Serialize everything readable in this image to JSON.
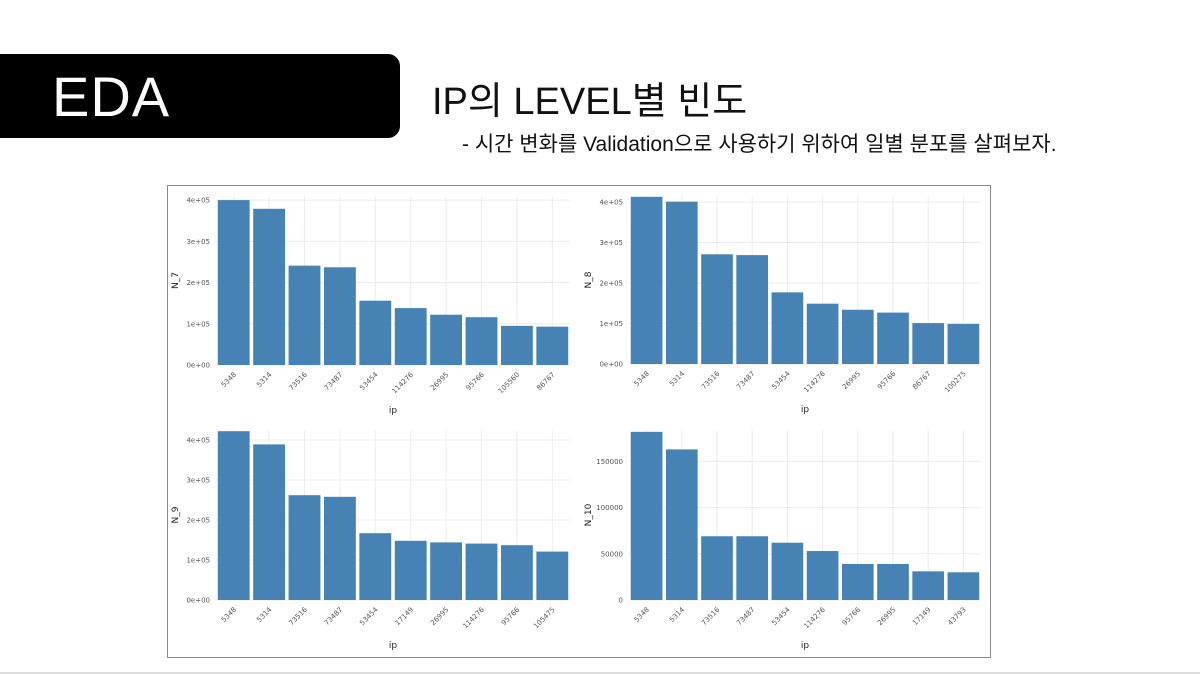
{
  "slide": {
    "tag": "EDA",
    "title": "IP의 LEVEL별 빈도",
    "subtitle": "- 시간 변화를 Validation으로 사용하기 위하여 일별 분포를 살펴보자."
  },
  "colors": {
    "bar": "#4682b4",
    "tag_background": "#000000"
  },
  "chart_data": [
    {
      "type": "bar",
      "title": "",
      "xlabel": "ip",
      "ylabel": "N_7",
      "categories": [
        "5348",
        "5314",
        "73516",
        "73487",
        "53454",
        "114276",
        "26995",
        "95766",
        "105560",
        "86767"
      ],
      "values": [
        400000,
        379000,
        241000,
        237000,
        156000,
        138000,
        122000,
        116000,
        95000,
        93000
      ],
      "yticks": [
        0,
        100000,
        200000,
        300000,
        400000
      ],
      "ytick_labels": [
        "0e+00",
        "1e+05",
        "2e+05",
        "3e+05",
        "4e+05"
      ],
      "ylim": [
        0,
        410000
      ],
      "grid": true
    },
    {
      "type": "bar",
      "title": "",
      "xlabel": "ip",
      "ylabel": "N_8",
      "categories": [
        "5348",
        "5314",
        "73516",
        "73487",
        "53454",
        "114276",
        "26995",
        "95766",
        "86767",
        "100275"
      ],
      "values": [
        413000,
        401000,
        271000,
        269000,
        177000,
        149000,
        134000,
        127000,
        101000,
        99000
      ],
      "yticks": [
        0,
        100000,
        200000,
        300000,
        400000
      ],
      "ytick_labels": [
        "0e+00",
        "1e+05",
        "2e+05",
        "3e+05",
        "4e+05"
      ],
      "ylim": [
        0,
        415000
      ],
      "grid": true
    },
    {
      "type": "bar",
      "title": "",
      "xlabel": "ip",
      "ylabel": "N_9",
      "categories": [
        "5348",
        "5314",
        "73516",
        "73487",
        "53454",
        "17149",
        "26995",
        "114276",
        "95766",
        "105475"
      ],
      "values": [
        422000,
        389000,
        262000,
        258000,
        167000,
        148000,
        144000,
        141000,
        137000,
        121000
      ],
      "yticks": [
        0,
        100000,
        200000,
        300000,
        400000
      ],
      "ytick_labels": [
        "0e+00",
        "1e+05",
        "2e+05",
        "3e+05",
        "4e+05"
      ],
      "ylim": [
        0,
        425000
      ],
      "grid": true
    },
    {
      "type": "bar",
      "title": "",
      "xlabel": "ip",
      "ylabel": "N_10",
      "categories": [
        "5348",
        "5314",
        "73516",
        "73487",
        "53454",
        "114276",
        "95766",
        "26995",
        "17149",
        "43793"
      ],
      "values": [
        182000,
        163000,
        69000,
        69000,
        62000,
        53000,
        39000,
        39000,
        31000,
        30000
      ],
      "yticks": [
        0,
        50000,
        100000,
        150000
      ],
      "ytick_labels": [
        "0",
        "50000",
        "100000",
        "150000"
      ],
      "ylim": [
        0,
        184000
      ],
      "grid": true
    }
  ]
}
